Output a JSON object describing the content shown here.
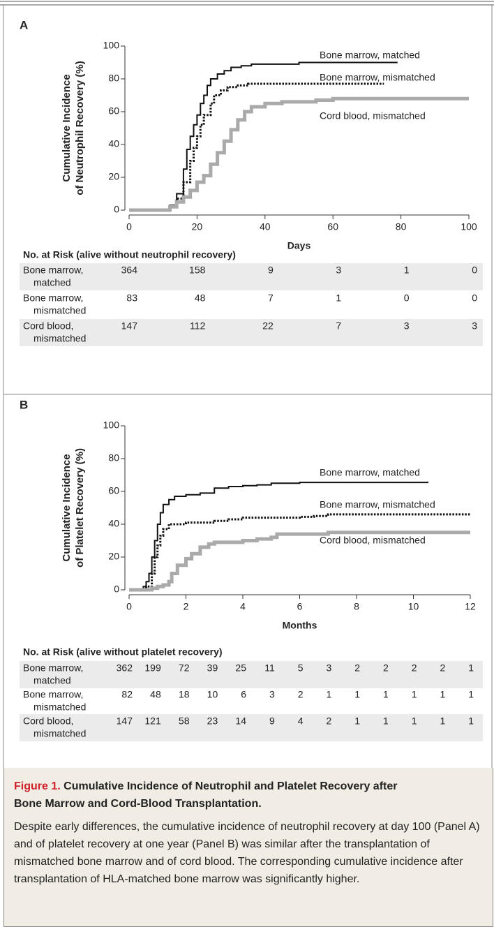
{
  "chart_data": [
    {
      "type": "line",
      "panel_label": "A",
      "xlabel": "Days",
      "ylabel": [
        "Cumulative Incidence",
        "of Neutrophil Recovery (%)"
      ],
      "xlim": [
        0,
        100
      ],
      "xticks": [
        0,
        20,
        40,
        60,
        80,
        100
      ],
      "ylim": [
        0,
        100
      ],
      "yticks": [
        0,
        20,
        40,
        60,
        80,
        100
      ],
      "series": [
        {
          "name": "Bone marrow, matched",
          "color": "#111111",
          "line_style": "solid",
          "x": [
            0,
            10,
            12,
            14,
            16,
            17,
            18,
            19,
            20,
            21,
            22,
            23,
            24,
            26,
            28,
            30,
            33,
            36,
            50,
            79
          ],
          "values": [
            0,
            0,
            3,
            10,
            25,
            37,
            45,
            52,
            58,
            65,
            70,
            76,
            80,
            83,
            85,
            87,
            88,
            89,
            90,
            90
          ]
        },
        {
          "name": "Bone marrow, mismatched",
          "color": "#111111",
          "line_style": "dotted",
          "x": [
            0,
            10,
            12,
            14,
            16,
            18,
            19,
            20,
            21,
            22,
            24,
            25,
            27,
            29,
            32,
            35,
            75
          ],
          "values": [
            0,
            0,
            2,
            7,
            17,
            30,
            38,
            45,
            52,
            58,
            65,
            70,
            73,
            75,
            76,
            77,
            77
          ]
        },
        {
          "name": "Cord blood, mismatched",
          "color": "#aaaaaa",
          "line_style": "thick",
          "x": [
            0,
            10,
            12,
            14,
            16,
            18,
            20,
            22,
            24,
            26,
            28,
            30,
            32,
            34,
            36,
            40,
            45,
            55,
            60,
            100
          ],
          "values": [
            0,
            0,
            2,
            5,
            8,
            12,
            17,
            21,
            28,
            35,
            42,
            49,
            55,
            60,
            63,
            65,
            66,
            67,
            68,
            68
          ]
        }
      ],
      "risk_table": {
        "title": "No. at Risk (alive without neutrophil recovery)",
        "rows": [
          {
            "label": [
              "Bone marrow,",
              "matched"
            ],
            "values": [
              364,
              158,
              9,
              3,
              1,
              0
            ]
          },
          {
            "label": [
              "Bone marrow,",
              "mismatched"
            ],
            "values": [
              83,
              48,
              7,
              1,
              0,
              0
            ]
          },
          {
            "label": [
              "Cord blood,",
              "mismatched"
            ],
            "values": [
              147,
              112,
              22,
              7,
              3,
              3
            ]
          }
        ]
      }
    },
    {
      "type": "line",
      "panel_label": "B",
      "xlabel": "Months",
      "ylabel": [
        "Cumulative Incidence",
        "of Platelet Recovery (%)"
      ],
      "xlim": [
        0,
        12
      ],
      "xticks": [
        0,
        2,
        4,
        6,
        8,
        10,
        12
      ],
      "ylim": [
        0,
        100
      ],
      "yticks": [
        0,
        20,
        40,
        60,
        80,
        100
      ],
      "series": [
        {
          "name": "Bone marrow, matched",
          "color": "#111111",
          "line_style": "solid",
          "x": [
            0,
            0.5,
            0.6,
            0.7,
            0.8,
            0.9,
            1.0,
            1.1,
            1.2,
            1.4,
            1.6,
            2,
            2.5,
            3,
            3.5,
            4,
            4.5,
            5,
            6,
            10.5
          ],
          "values": [
            0,
            2,
            5,
            10,
            20,
            30,
            40,
            47,
            52,
            55,
            57,
            58,
            59,
            62,
            63,
            63.5,
            64,
            65,
            65.5,
            66
          ]
        },
        {
          "name": "Bone marrow, mismatched",
          "color": "#111111",
          "line_style": "dotted",
          "x": [
            0,
            0.6,
            0.8,
            0.9,
            1,
            1.1,
            1.2,
            1.4,
            2,
            3,
            3.5,
            4,
            6,
            6.5,
            7,
            12
          ],
          "values": [
            0,
            2,
            10,
            20,
            27,
            33,
            37,
            40,
            41,
            42,
            43,
            44,
            44.5,
            45,
            46,
            46
          ]
        },
        {
          "name": "Cord blood, mismatched",
          "color": "#aaaaaa",
          "line_style": "thick",
          "x": [
            0,
            0.8,
            1,
            1.2,
            1.4,
            1.5,
            1.7,
            2,
            2.2,
            2.5,
            2.8,
            3,
            4,
            4.5,
            5,
            5.2,
            7,
            12
          ],
          "values": [
            0,
            1,
            2,
            3,
            5,
            10,
            15,
            19,
            22,
            26,
            28,
            29,
            30,
            31,
            32,
            34,
            35,
            35
          ]
        }
      ],
      "risk_table": {
        "title": "No. at Risk (alive without platelet recovery)",
        "rows": [
          {
            "label": [
              "Bone marrow,",
              "matched"
            ],
            "values": [
              362,
              199,
              72,
              39,
              25,
              11,
              5,
              3,
              2,
              2,
              2,
              2,
              1
            ]
          },
          {
            "label": [
              "Bone marrow,",
              "mismatched"
            ],
            "values": [
              82,
              48,
              18,
              10,
              6,
              3,
              2,
              1,
              1,
              1,
              1,
              1,
              1
            ]
          },
          {
            "label": [
              "Cord blood,",
              "mismatched"
            ],
            "values": [
              147,
              121,
              58,
              23,
              14,
              9,
              4,
              2,
              1,
              1,
              1,
              1,
              1
            ]
          }
        ]
      }
    }
  ],
  "caption": {
    "label": "Figure 1.",
    "title": "Cumulative Incidence of Neutrophil and Platelet Recovery after Bone Marrow and Cord-Blood Transplantation.",
    "body": "Despite early differences, the cumulative incidence of neutrophil recovery at day 100 (Panel A) and of platelet recovery at one year (Panel B) was similar after the transplantation of mismatched bone marrow and of cord blood. The corresponding cumulative incidence after transplantation of HLA-matched bone marrow was significantly higher."
  }
}
